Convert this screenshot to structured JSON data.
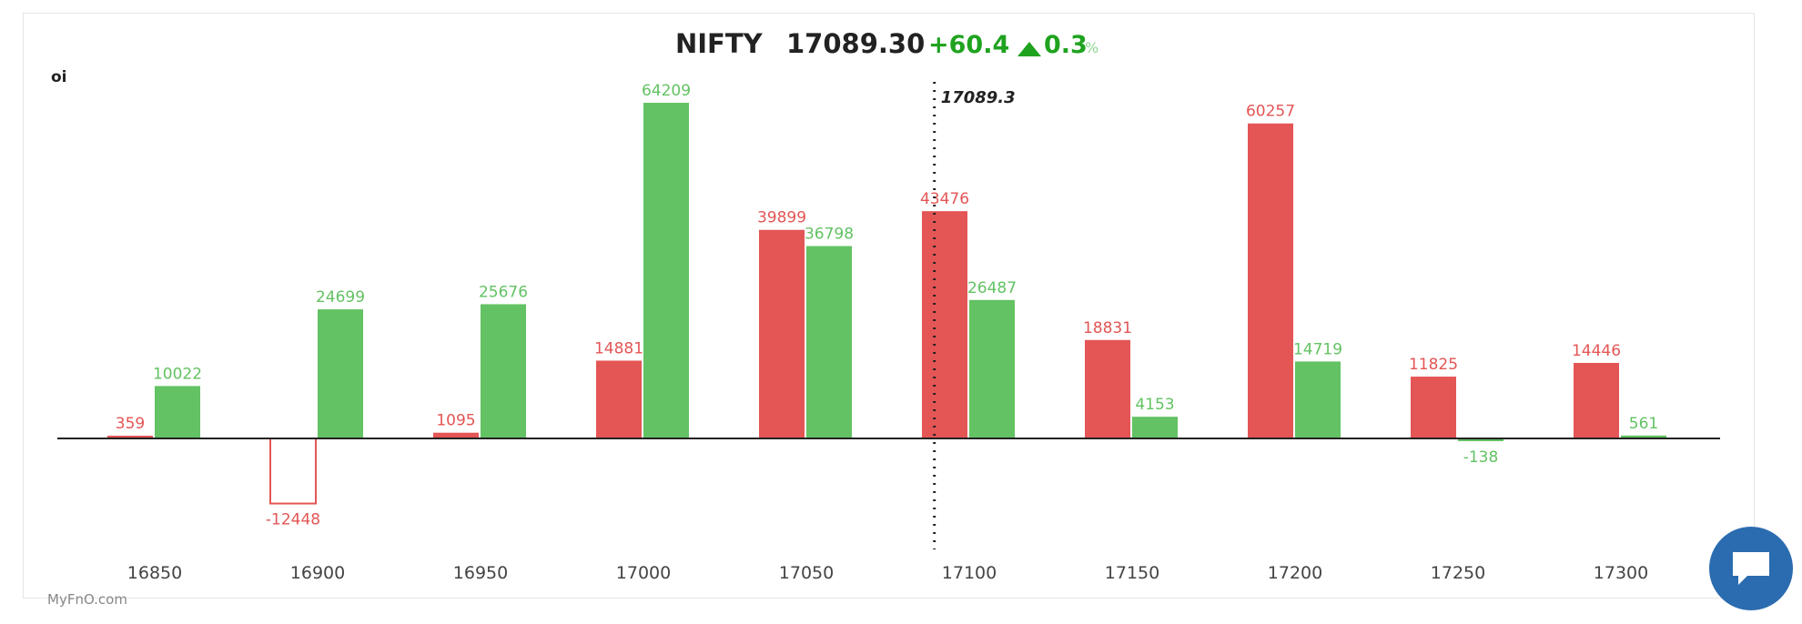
{
  "header": {
    "symbol": "NIFTY",
    "price": "17089.30",
    "change": "+60.4",
    "change_pct": "0.3",
    "pct_sign": "%",
    "up_color": "#1fa31f"
  },
  "brand": "MyFnO.com",
  "chat_button": {
    "icon": "chat-bubble-icon"
  },
  "chart_data": {
    "type": "bar",
    "ylabel": "oi",
    "categories": [
      "16850",
      "16900",
      "16950",
      "17000",
      "17050",
      "17100",
      "17150",
      "17200",
      "17250",
      "17300"
    ],
    "series": [
      {
        "values": [
          359,
          -12448,
          1095,
          14881,
          39899,
          43476,
          18831,
          60257,
          11825,
          14446
        ],
        "color": "#e45555"
      },
      {
        "values": [
          10022,
          24699,
          25676,
          64209,
          36798,
          26487,
          4153,
          14719,
          -138,
          561
        ],
        "color": "#63c263"
      }
    ],
    "value_labels": {
      "red": [
        "359",
        "-12448",
        "1095",
        "14881",
        "39899",
        "43476",
        "18831",
        "60257",
        "11825",
        "14446"
      ],
      "green": [
        "10022",
        "24699",
        "25676",
        "64209",
        "36798",
        "26487",
        "4153",
        "14719",
        "-138",
        "561"
      ]
    },
    "spot_line": {
      "value": 17089.3,
      "label": "17089.3"
    },
    "grid": false
  }
}
